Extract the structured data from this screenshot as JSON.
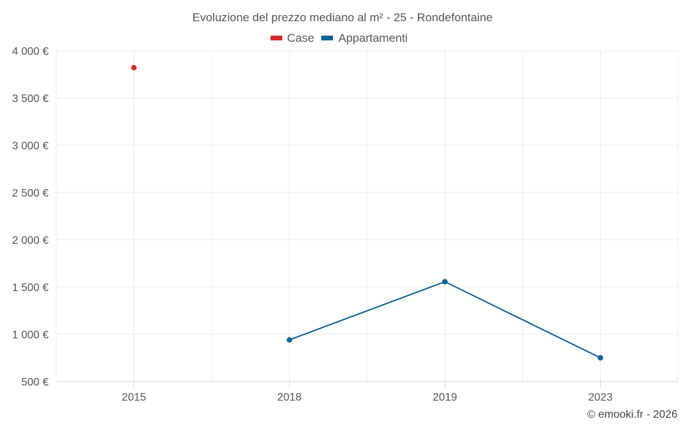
{
  "chart_data": {
    "type": "line",
    "title": "Evoluzione del prezzo mediano al m² - 25 - Rondefontaine",
    "categories": [
      "2015",
      "2018",
      "2019",
      "2023"
    ],
    "series": [
      {
        "name": "Case",
        "color": "#d62a2a",
        "values": [
          3820,
          null,
          null,
          null
        ]
      },
      {
        "name": "Appartamenti",
        "color": "#0e6496",
        "values": [
          null,
          940,
          1555,
          750
        ]
      }
    ],
    "yticks": [
      500,
      1000,
      1500,
      2000,
      2500,
      3000,
      3500,
      4000
    ],
    "ytick_labels": [
      "500 €",
      "1 000 €",
      "1 500 €",
      "2 000 €",
      "2 500 €",
      "3 000 €",
      "3 500 €",
      "4 000 €"
    ],
    "ylim": [
      500,
      4000
    ],
    "grid": true,
    "legend_position": "top-center",
    "xlabel": "",
    "ylabel": ""
  },
  "credit": "© emooki.fr - 2026"
}
